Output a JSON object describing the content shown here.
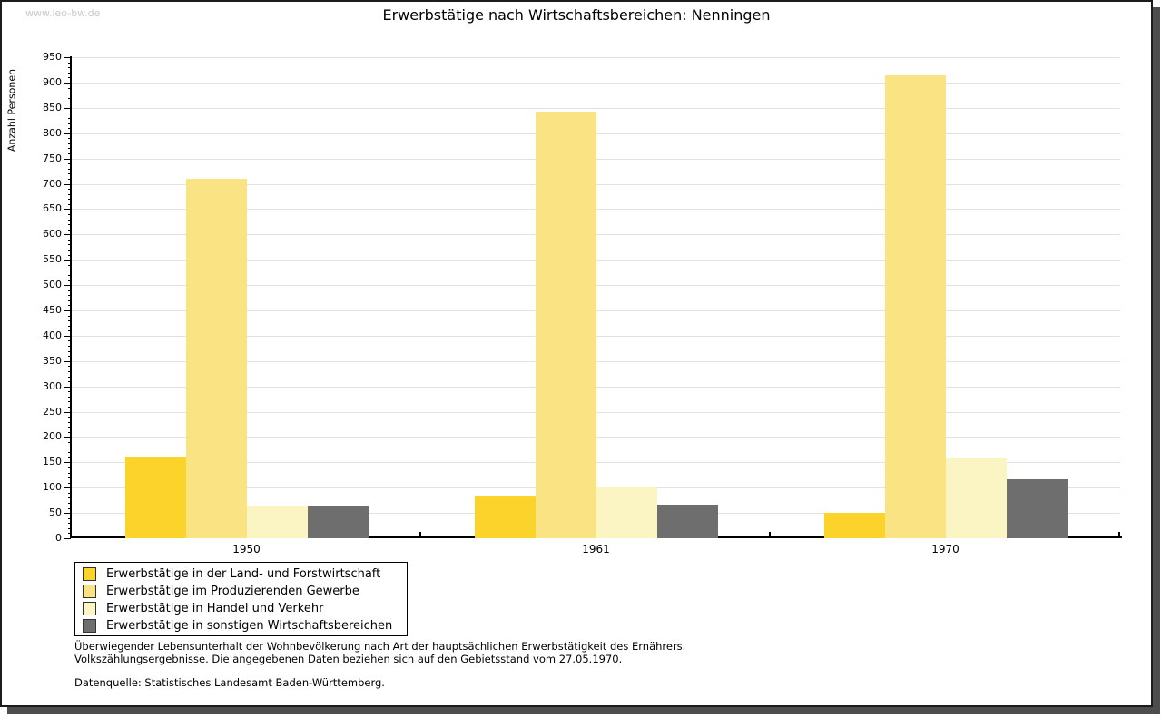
{
  "watermark": "www.leo-bw.de",
  "title": "Erwerbstätige nach Wirtschaftsbereichen: Nenningen",
  "chart_data": {
    "type": "bar",
    "title": "Erwerbstätige nach Wirtschaftsbereichen: Nenningen",
    "xlabel": "",
    "ylabel": "Anzahl Personen",
    "ylim": [
      0,
      950
    ],
    "ytick_step": 50,
    "yminor_step": 10,
    "yticks": [
      0,
      50,
      100,
      150,
      200,
      250,
      300,
      350,
      400,
      450,
      500,
      550,
      600,
      650,
      700,
      750,
      800,
      850,
      900,
      950
    ],
    "grid": "horizontal-major",
    "legend_position": "bottom-left-boxed",
    "categories": [
      "1950",
      "1961",
      "1970"
    ],
    "series": [
      {
        "name": "Erwerbstätige in der Land- und Forstwirtschaft",
        "color": "#FCD32B",
        "values": [
          160,
          85,
          50
        ]
      },
      {
        "name": "Erwerbstätige im Produzierenden Gewerbe",
        "color": "#FAE382",
        "values": [
          710,
          843,
          915
        ]
      },
      {
        "name": "Erwerbstätige in Handel und Verkehr",
        "color": "#FBF4C3",
        "values": [
          64,
          100,
          158
        ]
      },
      {
        "name": "Erwerbstätige in sonstigen Wirtschaftsbereichen",
        "color": "#6E6E6E",
        "values": [
          64,
          66,
          116
        ]
      }
    ]
  },
  "notes": {
    "line1": "Überwiegender Lebensunterhalt der Wohnbevölkerung nach Art der hauptsächlichen Erwerbstätigkeit des Ernährers.",
    "line2": "Volkszählungsergebnisse. Die angegebenen Daten beziehen sich auf den Gebietsstand vom 27.05.1970.",
    "source": "Datenquelle: Statistisches Landesamt Baden-Württemberg."
  },
  "frame_colors": {
    "border": "#1c1c1c",
    "shadow": "#4d4d4d",
    "gridline": "#e1e1e1",
    "watermark_text": "#c9c9c9"
  }
}
